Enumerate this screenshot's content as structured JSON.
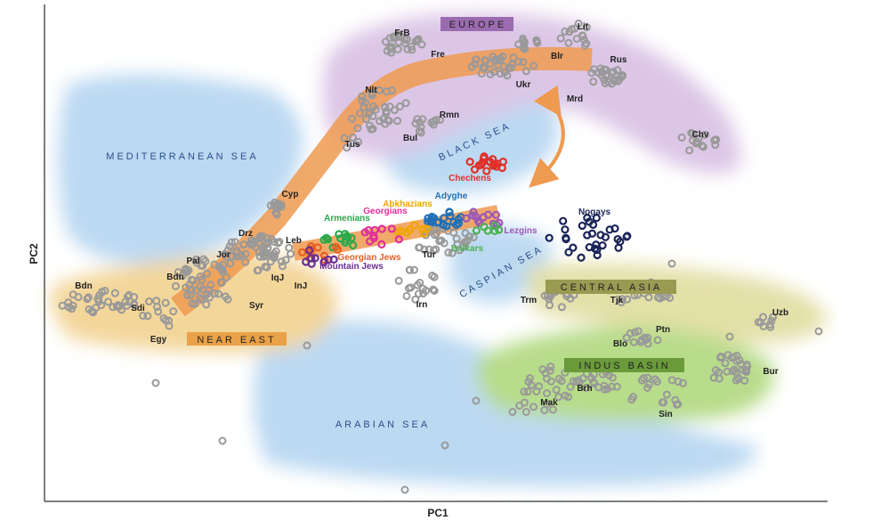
{
  "chart_data": {
    "type": "scatter",
    "xlabel": "PC1",
    "ylabel": "PC2",
    "regions": [
      "EUROPE",
      "NEAR EAST",
      "CENTRAL ASIA",
      "INDUS BASIN"
    ],
    "seas": [
      "MEDITERRANEAN SEA",
      "BLACK SEA",
      "CASPIAN SEA",
      "ARABIAN SEA"
    ],
    "populations": [
      "FrB",
      "Fre",
      "Lit",
      "Blr",
      "Rus",
      "Ukr",
      "Mrd",
      "Nlt",
      "Rmn",
      "Bul",
      "Tus",
      "Chv",
      "Cyp",
      "Drz",
      "Leb",
      "Jor",
      "Pal",
      "Bdn",
      "Bdn",
      "Sdi",
      "IqJ",
      "InJ",
      "Syr",
      "Egy",
      "Tur",
      "Irn",
      "Trm",
      "Tjk",
      "Uzb",
      "Ptn",
      "Blo",
      "Bur",
      "Brh",
      "Mak",
      "Sin"
    ],
    "groups": [
      {
        "name": "Chechens",
        "color": "#e0302a"
      },
      {
        "name": "Adyghe",
        "color": "#1f6fb5"
      },
      {
        "name": "Abkhazians",
        "color": "#f0a500"
      },
      {
        "name": "Georgians",
        "color": "#e0309a"
      },
      {
        "name": "Armenians",
        "color": "#2aa84a"
      },
      {
        "name": "Lezgins",
        "color": "#9b59b6"
      },
      {
        "name": "Balkars",
        "color": "#4caf50"
      },
      {
        "name": "Georgian Jews",
        "color": "#e85d20"
      },
      {
        "name": "Mountain Jews",
        "color": "#6a2c91"
      },
      {
        "name": "Nogays",
        "color": "#1a2458"
      }
    ]
  }
}
